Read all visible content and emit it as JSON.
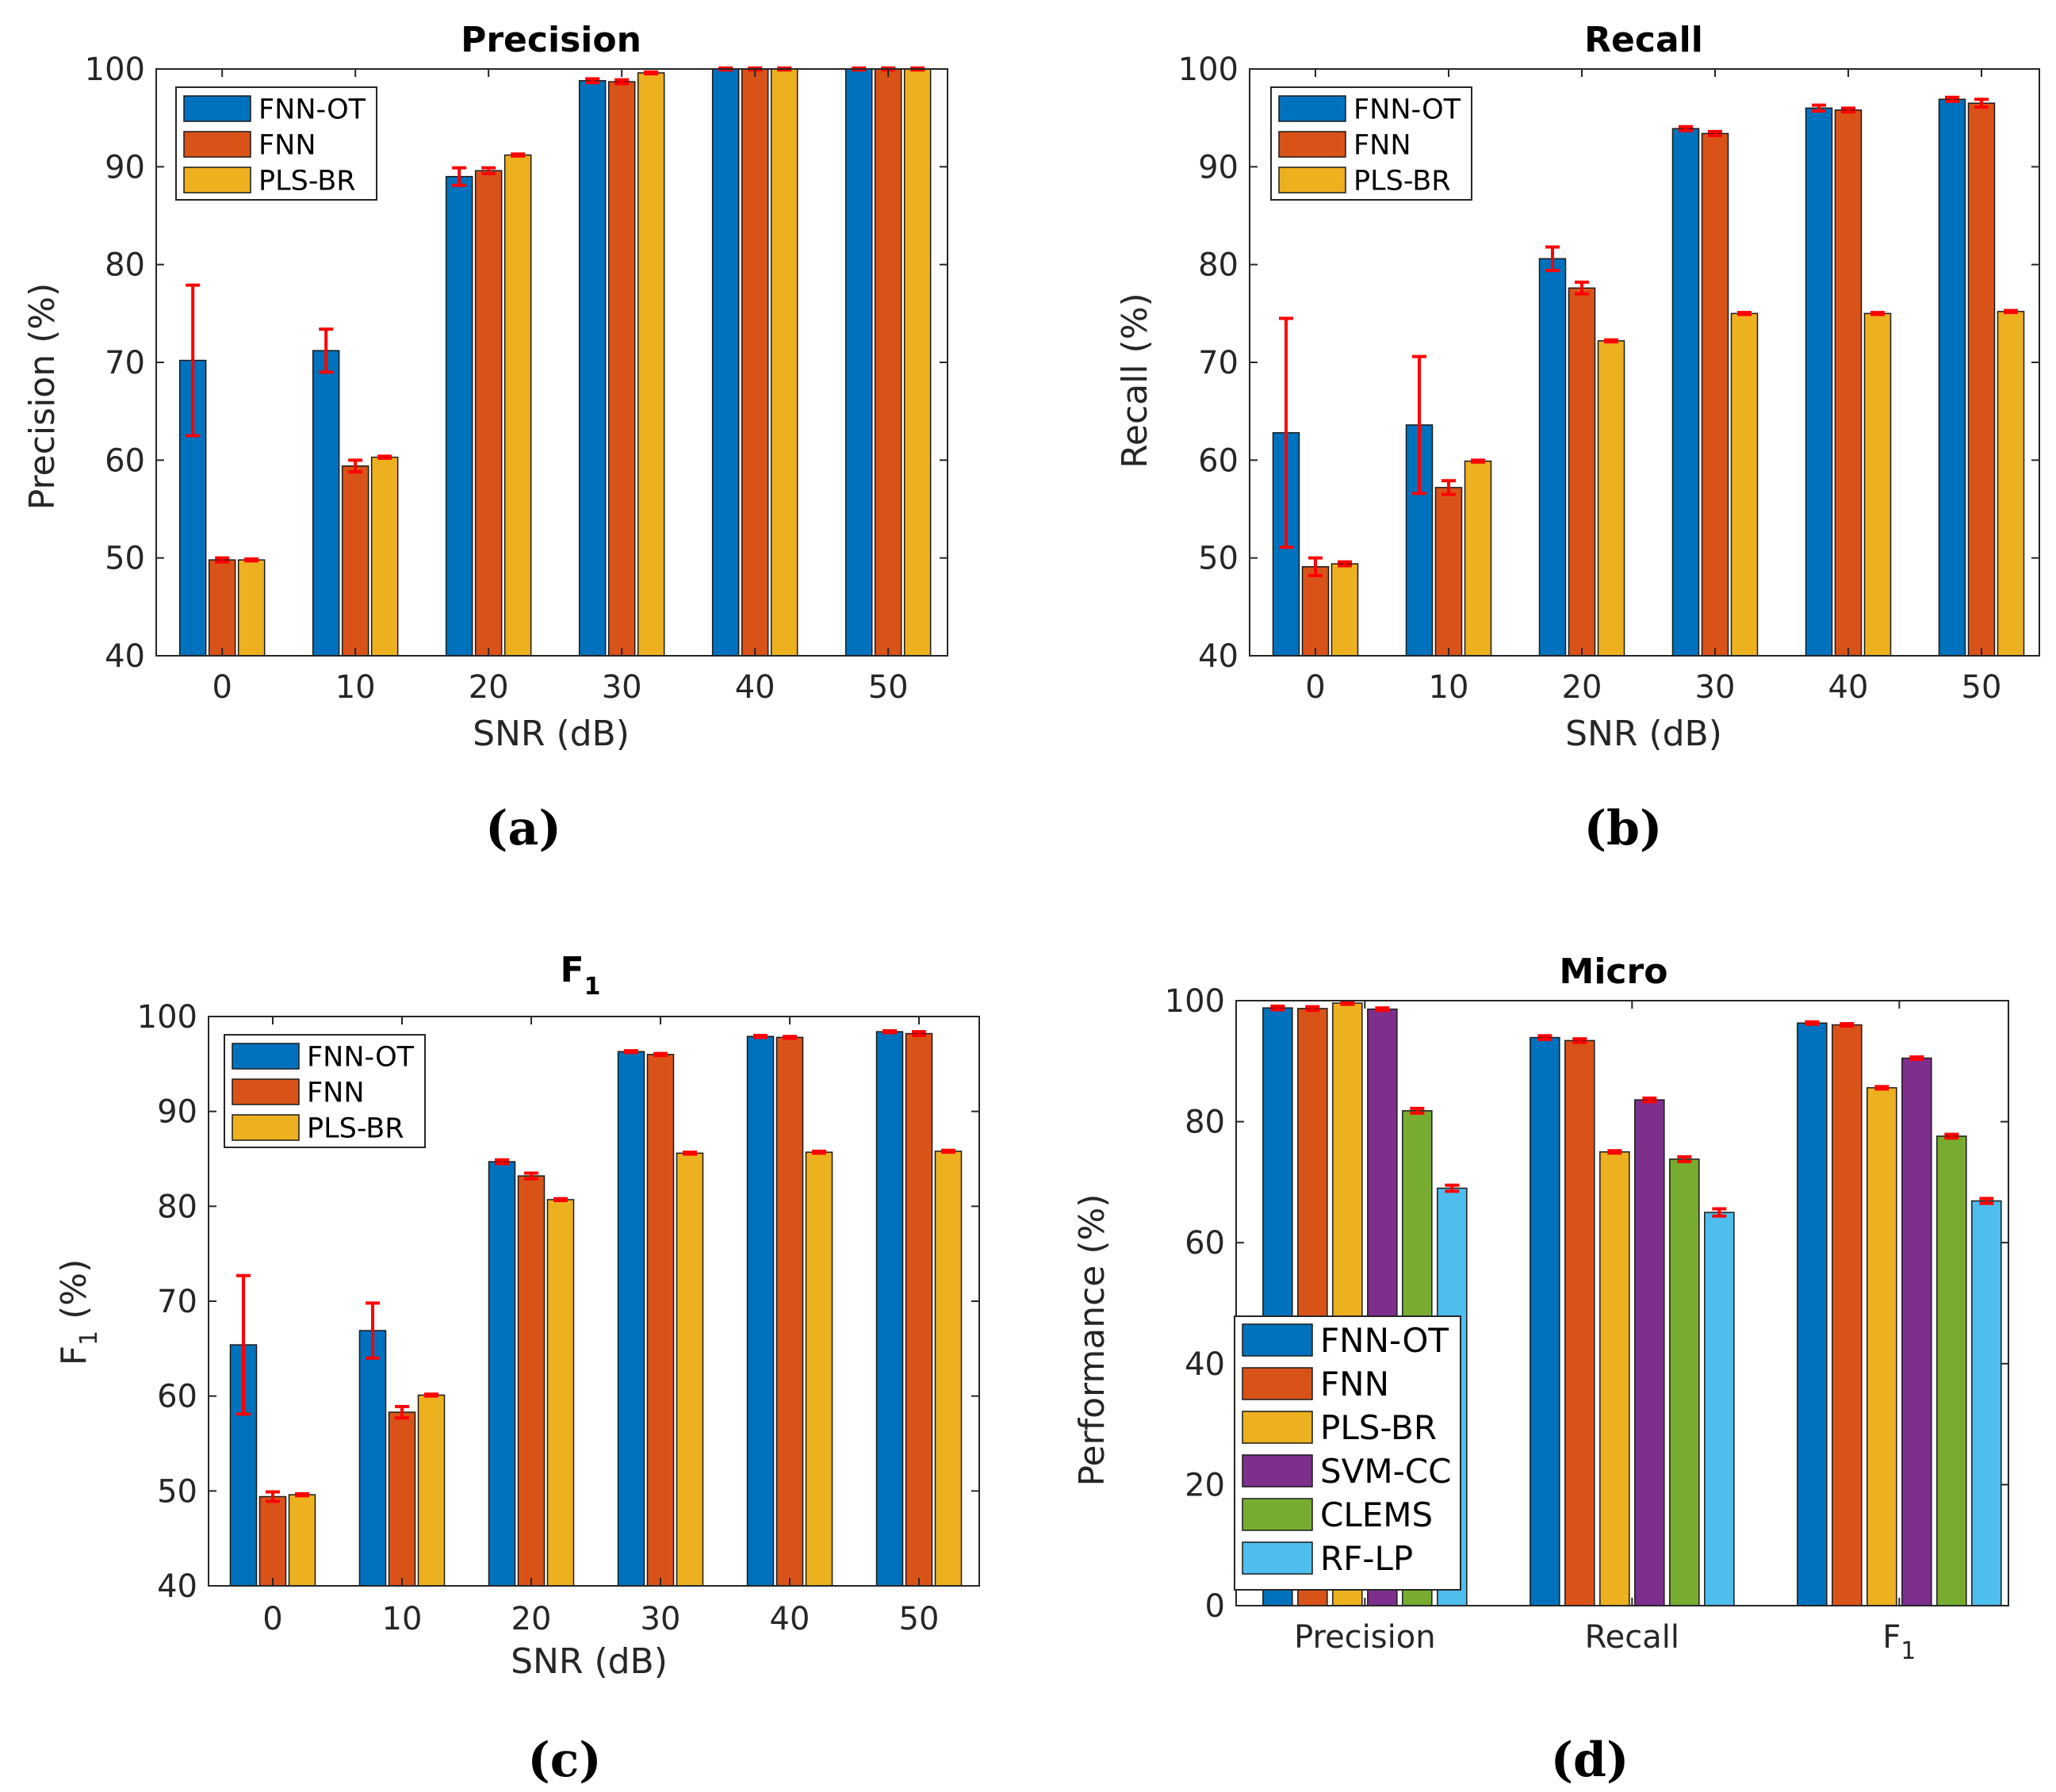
{
  "colors": {
    "FNN-OT": "#0072BD",
    "FNN": "#D95319",
    "PLS-BR": "#EDB120",
    "SVM-CC": "#7E2F8E",
    "CLEMS": "#77AC30",
    "RF-LP": "#4DBEEE",
    "error": "#FF0000"
  },
  "chart_data": [
    {
      "id": "a",
      "panel_label": "(a)",
      "type": "bar",
      "title": "Precision",
      "xlabel": "SNR (dB)",
      "ylabel": "Precision (%)",
      "ylim": [
        40,
        100
      ],
      "yticks": [
        40,
        50,
        60,
        70,
        80,
        90,
        100
      ],
      "legend_position": "top-left",
      "categories": [
        "0",
        "10",
        "20",
        "30",
        "40",
        "50"
      ],
      "series": [
        {
          "name": "FNN-OT",
          "values": [
            70.2,
            71.2,
            89.0,
            98.8,
            100.0,
            100.0
          ],
          "errors": [
            7.7,
            2.2,
            0.9,
            0.2,
            0.1,
            0.1
          ]
        },
        {
          "name": "FNN",
          "values": [
            49.8,
            59.4,
            89.6,
            98.7,
            100.0,
            100.0
          ],
          "errors": [
            0.2,
            0.6,
            0.3,
            0.2,
            0.1,
            0.1
          ]
        },
        {
          "name": "PLS-BR",
          "values": [
            49.8,
            60.3,
            91.2,
            99.6,
            100.0,
            100.0
          ],
          "errors": [
            0.1,
            0.1,
            0.1,
            0.1,
            0.1,
            0.1
          ]
        }
      ]
    },
    {
      "id": "b",
      "panel_label": "(b)",
      "type": "bar",
      "title": "Recall",
      "xlabel": "SNR (dB)",
      "ylabel": "Recall (%)",
      "ylim": [
        40,
        100
      ],
      "yticks": [
        40,
        50,
        60,
        70,
        80,
        90,
        100
      ],
      "legend_position": "top-left",
      "categories": [
        "0",
        "10",
        "20",
        "30",
        "40",
        "50"
      ],
      "series": [
        {
          "name": "FNN-OT",
          "values": [
            62.8,
            63.6,
            80.6,
            93.9,
            96.0,
            96.9
          ],
          "errors": [
            11.7,
            7.0,
            1.2,
            0.2,
            0.3,
            0.2
          ]
        },
        {
          "name": "FNN",
          "values": [
            49.1,
            57.2,
            77.6,
            93.4,
            95.8,
            96.5
          ],
          "errors": [
            0.9,
            0.7,
            0.6,
            0.2,
            0.2,
            0.4
          ]
        },
        {
          "name": "PLS-BR",
          "values": [
            49.4,
            59.9,
            72.2,
            75.0,
            75.0,
            75.2
          ],
          "errors": [
            0.2,
            0.1,
            0.1,
            0.1,
            0.1,
            0.1
          ]
        }
      ]
    },
    {
      "id": "c",
      "panel_label": "(c)",
      "type": "bar",
      "title": "F",
      "title_sub": "1",
      "xlabel": "SNR (dB)",
      "ylabel": "F",
      "ylabel_sub": "1",
      "ylabel_suffix": " (%)",
      "ylim": [
        40,
        100
      ],
      "yticks": [
        40,
        50,
        60,
        70,
        80,
        90,
        100
      ],
      "legend_position": "top-left",
      "categories": [
        "0",
        "10",
        "20",
        "30",
        "40",
        "50"
      ],
      "series": [
        {
          "name": "FNN-OT",
          "values": [
            65.4,
            66.9,
            84.7,
            96.3,
            97.9,
            98.4
          ],
          "errors": [
            7.3,
            2.9,
            0.2,
            0.1,
            0.1,
            0.1
          ]
        },
        {
          "name": "FNN",
          "values": [
            49.4,
            58.3,
            83.2,
            96.0,
            97.8,
            98.2
          ],
          "errors": [
            0.5,
            0.6,
            0.3,
            0.1,
            0.1,
            0.2
          ]
        },
        {
          "name": "PLS-BR",
          "values": [
            49.6,
            60.1,
            80.7,
            85.6,
            85.7,
            85.8
          ],
          "errors": [
            0.1,
            0.1,
            0.1,
            0.1,
            0.1,
            0.1
          ]
        }
      ]
    },
    {
      "id": "d",
      "panel_label": "(d)",
      "type": "bar",
      "title": "Micro",
      "xlabel": "",
      "ylabel": "Performance (%)",
      "ylim": [
        0,
        100
      ],
      "yticks": [
        0,
        20,
        40,
        60,
        80,
        100
      ],
      "legend_position": "bottom-left",
      "categories": [
        "Precision",
        "Recall",
        "F|1"
      ],
      "series": [
        {
          "name": "FNN-OT",
          "values": [
            98.8,
            93.9,
            96.3
          ],
          "errors": [
            0.3,
            0.3,
            0.2
          ]
        },
        {
          "name": "FNN",
          "values": [
            98.7,
            93.4,
            96.0
          ],
          "errors": [
            0.3,
            0.3,
            0.2
          ]
        },
        {
          "name": "PLS-BR",
          "values": [
            99.6,
            75.0,
            85.6
          ],
          "errors": [
            0.2,
            0.2,
            0.2
          ]
        },
        {
          "name": "SVM-CC",
          "values": [
            98.6,
            83.6,
            90.5
          ],
          "errors": [
            0.2,
            0.3,
            0.2
          ]
        },
        {
          "name": "CLEMS",
          "values": [
            81.8,
            73.8,
            77.6
          ],
          "errors": [
            0.4,
            0.4,
            0.3
          ]
        },
        {
          "name": "RF-LP",
          "values": [
            69.0,
            65.0,
            66.9
          ],
          "errors": [
            0.5,
            0.6,
            0.4
          ]
        }
      ]
    }
  ]
}
